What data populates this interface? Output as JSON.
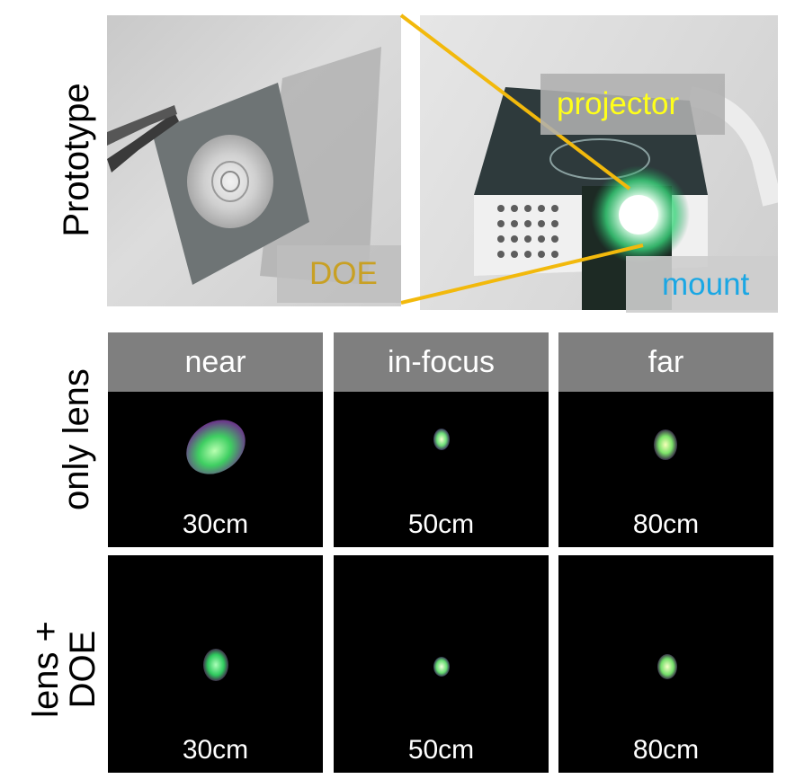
{
  "row_labels": [
    "Prototype",
    "only lens",
    "lens +",
    "DOE"
  ],
  "photo_labels": {
    "doe": "DOE",
    "projector": "projector",
    "mount": "mount"
  },
  "column_headers": [
    "near",
    "in-focus",
    "far"
  ],
  "distances": [
    "30cm",
    "50cm",
    "80cm"
  ],
  "colors": {
    "header_bg": "#7f7f7f",
    "doe_label": "#c8a024",
    "projector_label": "#ffff1a",
    "mount_label": "#1aa7e4",
    "connector_lines": "#f2b90c"
  }
}
